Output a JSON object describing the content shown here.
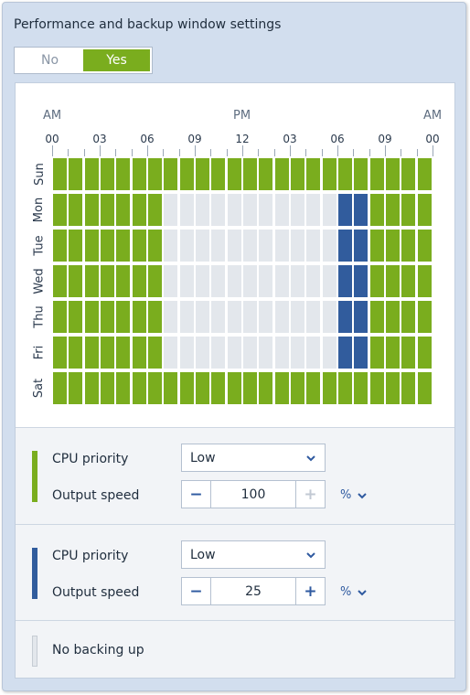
{
  "title": "Performance and backup window settings",
  "toggle": {
    "no_label": "No",
    "yes_label": "Yes",
    "selected": "Yes"
  },
  "schedule": {
    "ampm_labels": [
      "AM",
      "PM",
      "AM"
    ],
    "hour_labels": [
      "00",
      "03",
      "06",
      "09",
      "12",
      "03",
      "06",
      "09",
      "00"
    ],
    "days": [
      "Sun",
      "Mon",
      "Tue",
      "Wed",
      "Thu",
      "Fri",
      "Sat"
    ],
    "legend_colors": {
      "green": "#7aad1e",
      "blue": "#315c9d",
      "gray": "#e3e7ec"
    },
    "grid": [
      "gggggggggggggggggggggggg",
      "gggggggnnnnnnnnnnnbbgggg",
      "gggggggnnnnnnnnnnnbbgggg",
      "gggggggnnnnnnnnnnnbbgggg",
      "gggggggnnnnnnnnnnnbbgggg",
      "gggggggnnnnnnnnnnnbbgggg",
      "gggggggggggggggggggggggg"
    ]
  },
  "green_section": {
    "cpu_priority_label": "CPU priority",
    "cpu_priority_value": "Low",
    "output_speed_label": "Output speed",
    "output_speed_value": "100",
    "unit": "%"
  },
  "blue_section": {
    "cpu_priority_label": "CPU priority",
    "cpu_priority_value": "Low",
    "output_speed_label": "Output speed",
    "output_speed_value": "25",
    "unit": "%"
  },
  "gray_section": {
    "label": "No backing up"
  }
}
